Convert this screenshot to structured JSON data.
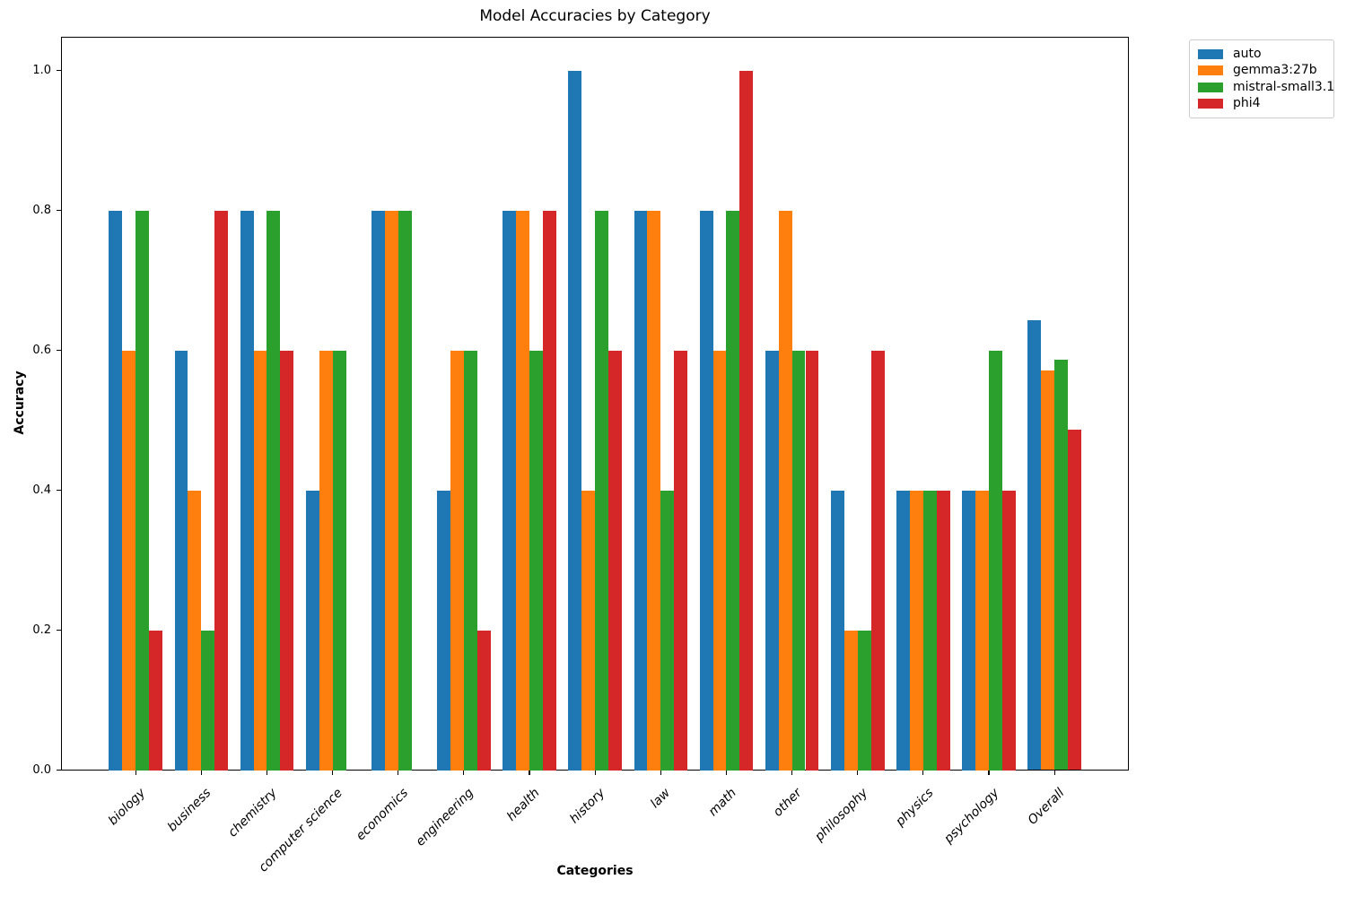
{
  "chart_data": {
    "type": "bar",
    "title": "Model Accuracies by Category",
    "xlabel": "Categories",
    "ylabel": "Accuracy",
    "categories": [
      "biology",
      "business",
      "chemistry",
      "computer science",
      "economics",
      "engineering",
      "health",
      "history",
      "law",
      "math",
      "other",
      "philosophy",
      "physics",
      "psychology",
      "Overall"
    ],
    "series": [
      {
        "name": "auto",
        "color": "#1f77b4",
        "values": [
          0.8,
          0.6,
          0.8,
          0.4,
          0.8,
          0.4,
          0.8,
          1.0,
          0.8,
          0.8,
          0.6,
          0.4,
          0.4,
          0.4,
          0.643
        ]
      },
      {
        "name": "gemma3:27b",
        "color": "#ff7f0e",
        "values": [
          0.6,
          0.4,
          0.6,
          0.6,
          0.8,
          0.6,
          0.8,
          0.4,
          0.8,
          0.6,
          0.8,
          0.2,
          0.4,
          0.4,
          0.571
        ]
      },
      {
        "name": "mistral-small3.1",
        "color": "#2ca02c",
        "values": [
          0.8,
          0.2,
          0.8,
          0.6,
          0.8,
          0.6,
          0.6,
          0.8,
          0.4,
          0.8,
          0.6,
          0.2,
          0.4,
          0.6,
          0.586
        ]
      },
      {
        "name": "phi4",
        "color": "#d62728",
        "values": [
          0.2,
          0.8,
          0.6,
          0.0,
          0.0,
          0.2,
          0.8,
          0.6,
          0.6,
          1.0,
          0.6,
          0.6,
          0.4,
          0.4,
          0.486
        ]
      }
    ],
    "yticks": [
      0.0,
      0.2,
      0.4,
      0.6,
      0.8,
      1.0
    ],
    "ytick_labels": [
      "0.0",
      "0.2",
      "0.4",
      "0.6",
      "0.8",
      "1.0"
    ],
    "ylim": [
      0,
      1.048
    ],
    "grid": false,
    "legend_position": "upper right, outside plot",
    "x_tick_rotation": 45,
    "bar_width_fraction": 0.2
  }
}
